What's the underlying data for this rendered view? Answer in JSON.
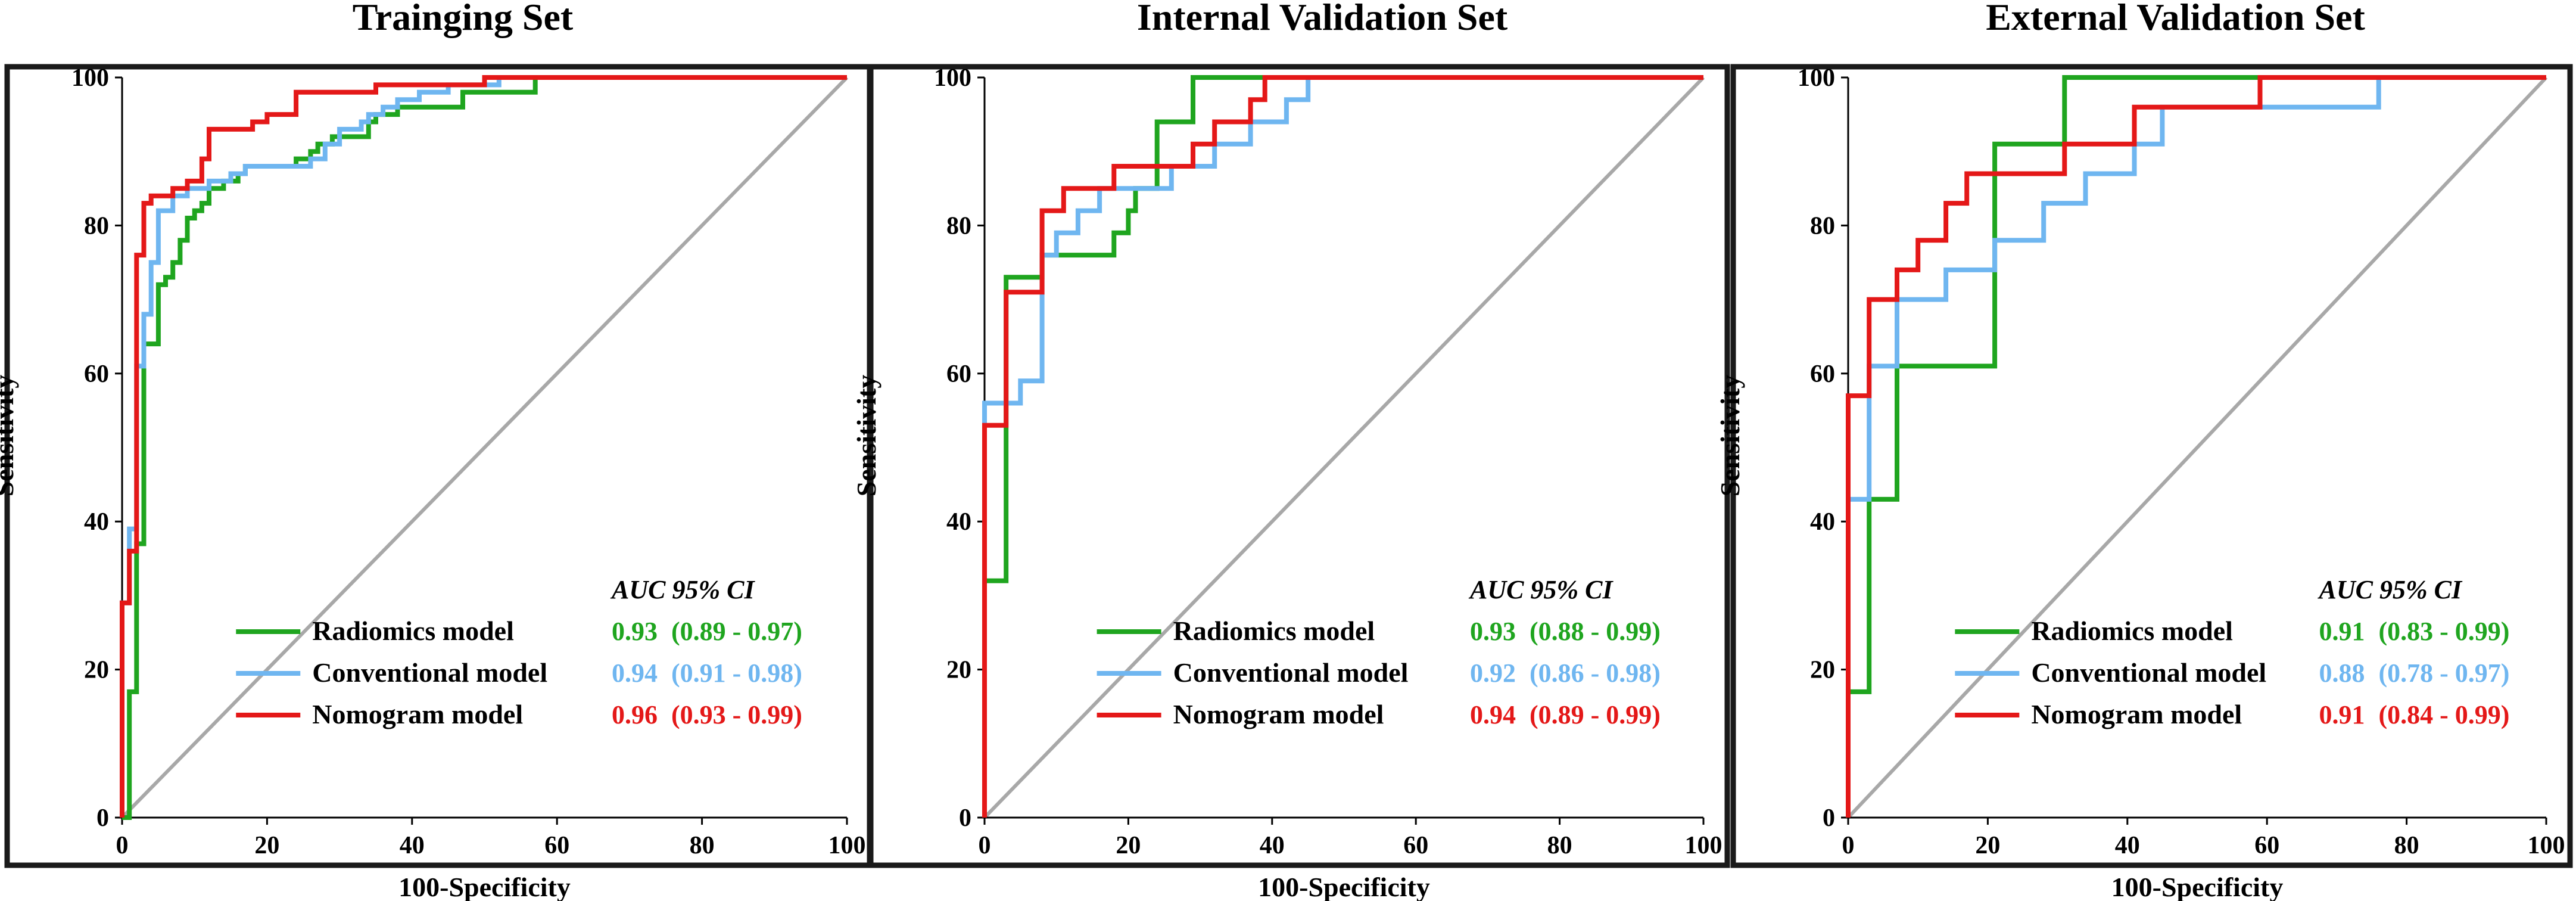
{
  "chart_data": [
    {
      "type": "line",
      "title": "Trainging Set",
      "xlabel": "100-Specificity",
      "ylabel": "Sensitivity",
      "xlim": [
        0,
        100
      ],
      "ylim": [
        0,
        100
      ],
      "xticks": [
        "0",
        "20",
        "40",
        "60",
        "80",
        "100"
      ],
      "yticks": [
        "0",
        "20",
        "40",
        "60",
        "80",
        "100"
      ],
      "auc_header": "AUC  95% CI",
      "series": [
        {
          "name": "Radiomics model",
          "color": "#1fa51f",
          "auc": "0.93",
          "ci": "(0.89 - 0.97)",
          "x": [
            0,
            1,
            1,
            2,
            2,
            3,
            3,
            5,
            5,
            6,
            6,
            7,
            7,
            8,
            8,
            9,
            9,
            10,
            10,
            11,
            11,
            12,
            12,
            14,
            14,
            16,
            16,
            17,
            17,
            20,
            20,
            21,
            21,
            24,
            24,
            26,
            26,
            27,
            27,
            29,
            29,
            30,
            30,
            34,
            34,
            35,
            35,
            36,
            36,
            38,
            38,
            39,
            39,
            47,
            47,
            57,
            57,
            100
          ],
          "y": [
            0,
            0,
            17,
            17,
            37,
            37,
            64,
            64,
            72,
            72,
            73,
            73,
            75,
            75,
            78,
            78,
            81,
            81,
            82,
            82,
            83,
            83,
            85,
            85,
            86,
            86,
            87,
            87,
            88,
            88,
            88,
            88,
            88,
            88,
            89,
            89,
            90,
            90,
            91,
            91,
            92,
            92,
            92,
            92,
            94,
            94,
            95,
            95,
            95,
            95,
            96,
            96,
            96,
            96,
            98,
            98,
            100,
            100
          ]
        },
        {
          "name": "Conventional model",
          "color": "#6fb6f0",
          "auc": "0.94",
          "ci": "(0.91 - 0.98)",
          "x": [
            0,
            0,
            1,
            1,
            2,
            2,
            3,
            3,
            4,
            4,
            5,
            5,
            7,
            7,
            9,
            9,
            12,
            12,
            15,
            15,
            17,
            17,
            19,
            19,
            26,
            26,
            28,
            28,
            30,
            30,
            31,
            31,
            33,
            33,
            34,
            34,
            36,
            36,
            38,
            38,
            41,
            41,
            45,
            45,
            52,
            52,
            100
          ],
          "y": [
            0,
            29,
            29,
            39,
            39,
            61,
            61,
            68,
            68,
            75,
            75,
            82,
            82,
            84,
            84,
            85,
            85,
            86,
            86,
            87,
            87,
            88,
            88,
            88,
            88,
            89,
            89,
            91,
            91,
            93,
            93,
            93,
            93,
            94,
            94,
            95,
            95,
            96,
            96,
            97,
            97,
            98,
            98,
            99,
            99,
            100,
            100
          ]
        },
        {
          "name": "Nomogram model",
          "color": "#e41818",
          "auc": "0.96",
          "ci": "(0.93 - 0.99)",
          "x": [
            0,
            0,
            1,
            1,
            2,
            2,
            3,
            3,
            4,
            4,
            7,
            7,
            9,
            9,
            11,
            11,
            12,
            12,
            18,
            18,
            20,
            20,
            24,
            24,
            35,
            35,
            50,
            50,
            100
          ],
          "y": [
            0,
            29,
            29,
            36,
            36,
            76,
            76,
            83,
            83,
            84,
            84,
            85,
            85,
            86,
            86,
            89,
            89,
            93,
            93,
            94,
            94,
            95,
            95,
            98,
            98,
            99,
            99,
            100,
            100
          ]
        }
      ]
    },
    {
      "type": "line",
      "title": "Internal Validation Set",
      "xlabel": "100-Specificity",
      "ylabel": "Sensitivity",
      "xlim": [
        0,
        100
      ],
      "ylim": [
        0,
        100
      ],
      "xticks": [
        "0",
        "20",
        "40",
        "60",
        "80",
        "100"
      ],
      "yticks": [
        "0",
        "20",
        "40",
        "60",
        "80",
        "100"
      ],
      "auc_header": "AUC  95% CI",
      "series": [
        {
          "name": "Radiomics model",
          "color": "#1fa51f",
          "auc": "0.93",
          "ci": "(0.88 - 0.99)",
          "x": [
            0,
            0,
            3,
            3,
            8,
            8,
            10,
            10,
            18,
            18,
            20,
            20,
            21,
            21,
            24,
            24,
            29,
            29,
            100
          ],
          "y": [
            0,
            32,
            32,
            73,
            73,
            76,
            76,
            76,
            76,
            79,
            79,
            82,
            82,
            85,
            85,
            94,
            94,
            100,
            100
          ]
        },
        {
          "name": "Conventional model",
          "color": "#6fb6f0",
          "auc": "0.92",
          "ci": "(0.86 - 0.98)",
          "x": [
            0,
            0,
            5,
            5,
            8,
            8,
            10,
            10,
            13,
            13,
            16,
            16,
            26,
            26,
            32,
            32,
            37,
            37,
            42,
            42,
            45,
            45,
            100
          ],
          "y": [
            0,
            56,
            56,
            59,
            59,
            76,
            76,
            79,
            79,
            82,
            82,
            85,
            85,
            88,
            88,
            91,
            91,
            94,
            94,
            97,
            97,
            100,
            100
          ]
        },
        {
          "name": "Nomogram model",
          "color": "#e41818",
          "auc": "0.94",
          "ci": "(0.89 - 0.99)",
          "x": [
            0,
            0,
            3,
            3,
            8,
            8,
            11,
            11,
            18,
            18,
            26,
            26,
            29,
            29,
            32,
            32,
            37,
            37,
            39,
            39,
            100
          ],
          "y": [
            0,
            53,
            53,
            71,
            71,
            82,
            82,
            85,
            85,
            88,
            88,
            88,
            88,
            91,
            91,
            94,
            94,
            97,
            97,
            100,
            100
          ]
        }
      ]
    },
    {
      "type": "line",
      "title": "External Validation Set",
      "xlabel": "100-Specificity",
      "ylabel": "Sensitivity",
      "xlim": [
        0,
        100
      ],
      "ylim": [
        0,
        100
      ],
      "xticks": [
        "0",
        "20",
        "40",
        "60",
        "80",
        "100"
      ],
      "yticks": [
        "0",
        "20",
        "40",
        "60",
        "80",
        "100"
      ],
      "auc_header": "AUC  95% CI",
      "series": [
        {
          "name": "Radiomics model",
          "color": "#1fa51f",
          "auc": "0.91",
          "ci": "(0.83 - 0.99)",
          "x": [
            0,
            0,
            3,
            3,
            7,
            7,
            21,
            21,
            31,
            31,
            100
          ],
          "y": [
            0,
            17,
            17,
            43,
            43,
            61,
            61,
            91,
            91,
            100,
            100
          ]
        },
        {
          "name": "Conventional model",
          "color": "#6fb6f0",
          "auc": "0.88",
          "ci": "(0.78 - 0.97)",
          "x": [
            0,
            0,
            3,
            3,
            7,
            7,
            14,
            14,
            21,
            21,
            28,
            28,
            34,
            34,
            41,
            41,
            45,
            45,
            59,
            59,
            76,
            76,
            100
          ],
          "y": [
            0,
            43,
            43,
            61,
            61,
            70,
            70,
            74,
            74,
            78,
            78,
            83,
            83,
            87,
            87,
            91,
            91,
            96,
            96,
            96,
            96,
            100,
            100
          ]
        },
        {
          "name": "Nomogram model",
          "color": "#e41818",
          "auc": "0.91",
          "ci": "(0.84 - 0.99)",
          "x": [
            0,
            0,
            3,
            3,
            7,
            7,
            10,
            10,
            14,
            14,
            17,
            17,
            21,
            21,
            31,
            31,
            41,
            41,
            59,
            59,
            100
          ],
          "y": [
            0,
            57,
            57,
            70,
            70,
            74,
            74,
            78,
            78,
            83,
            83,
            87,
            87,
            87,
            87,
            91,
            91,
            96,
            96,
            100,
            100
          ]
        }
      ]
    }
  ]
}
